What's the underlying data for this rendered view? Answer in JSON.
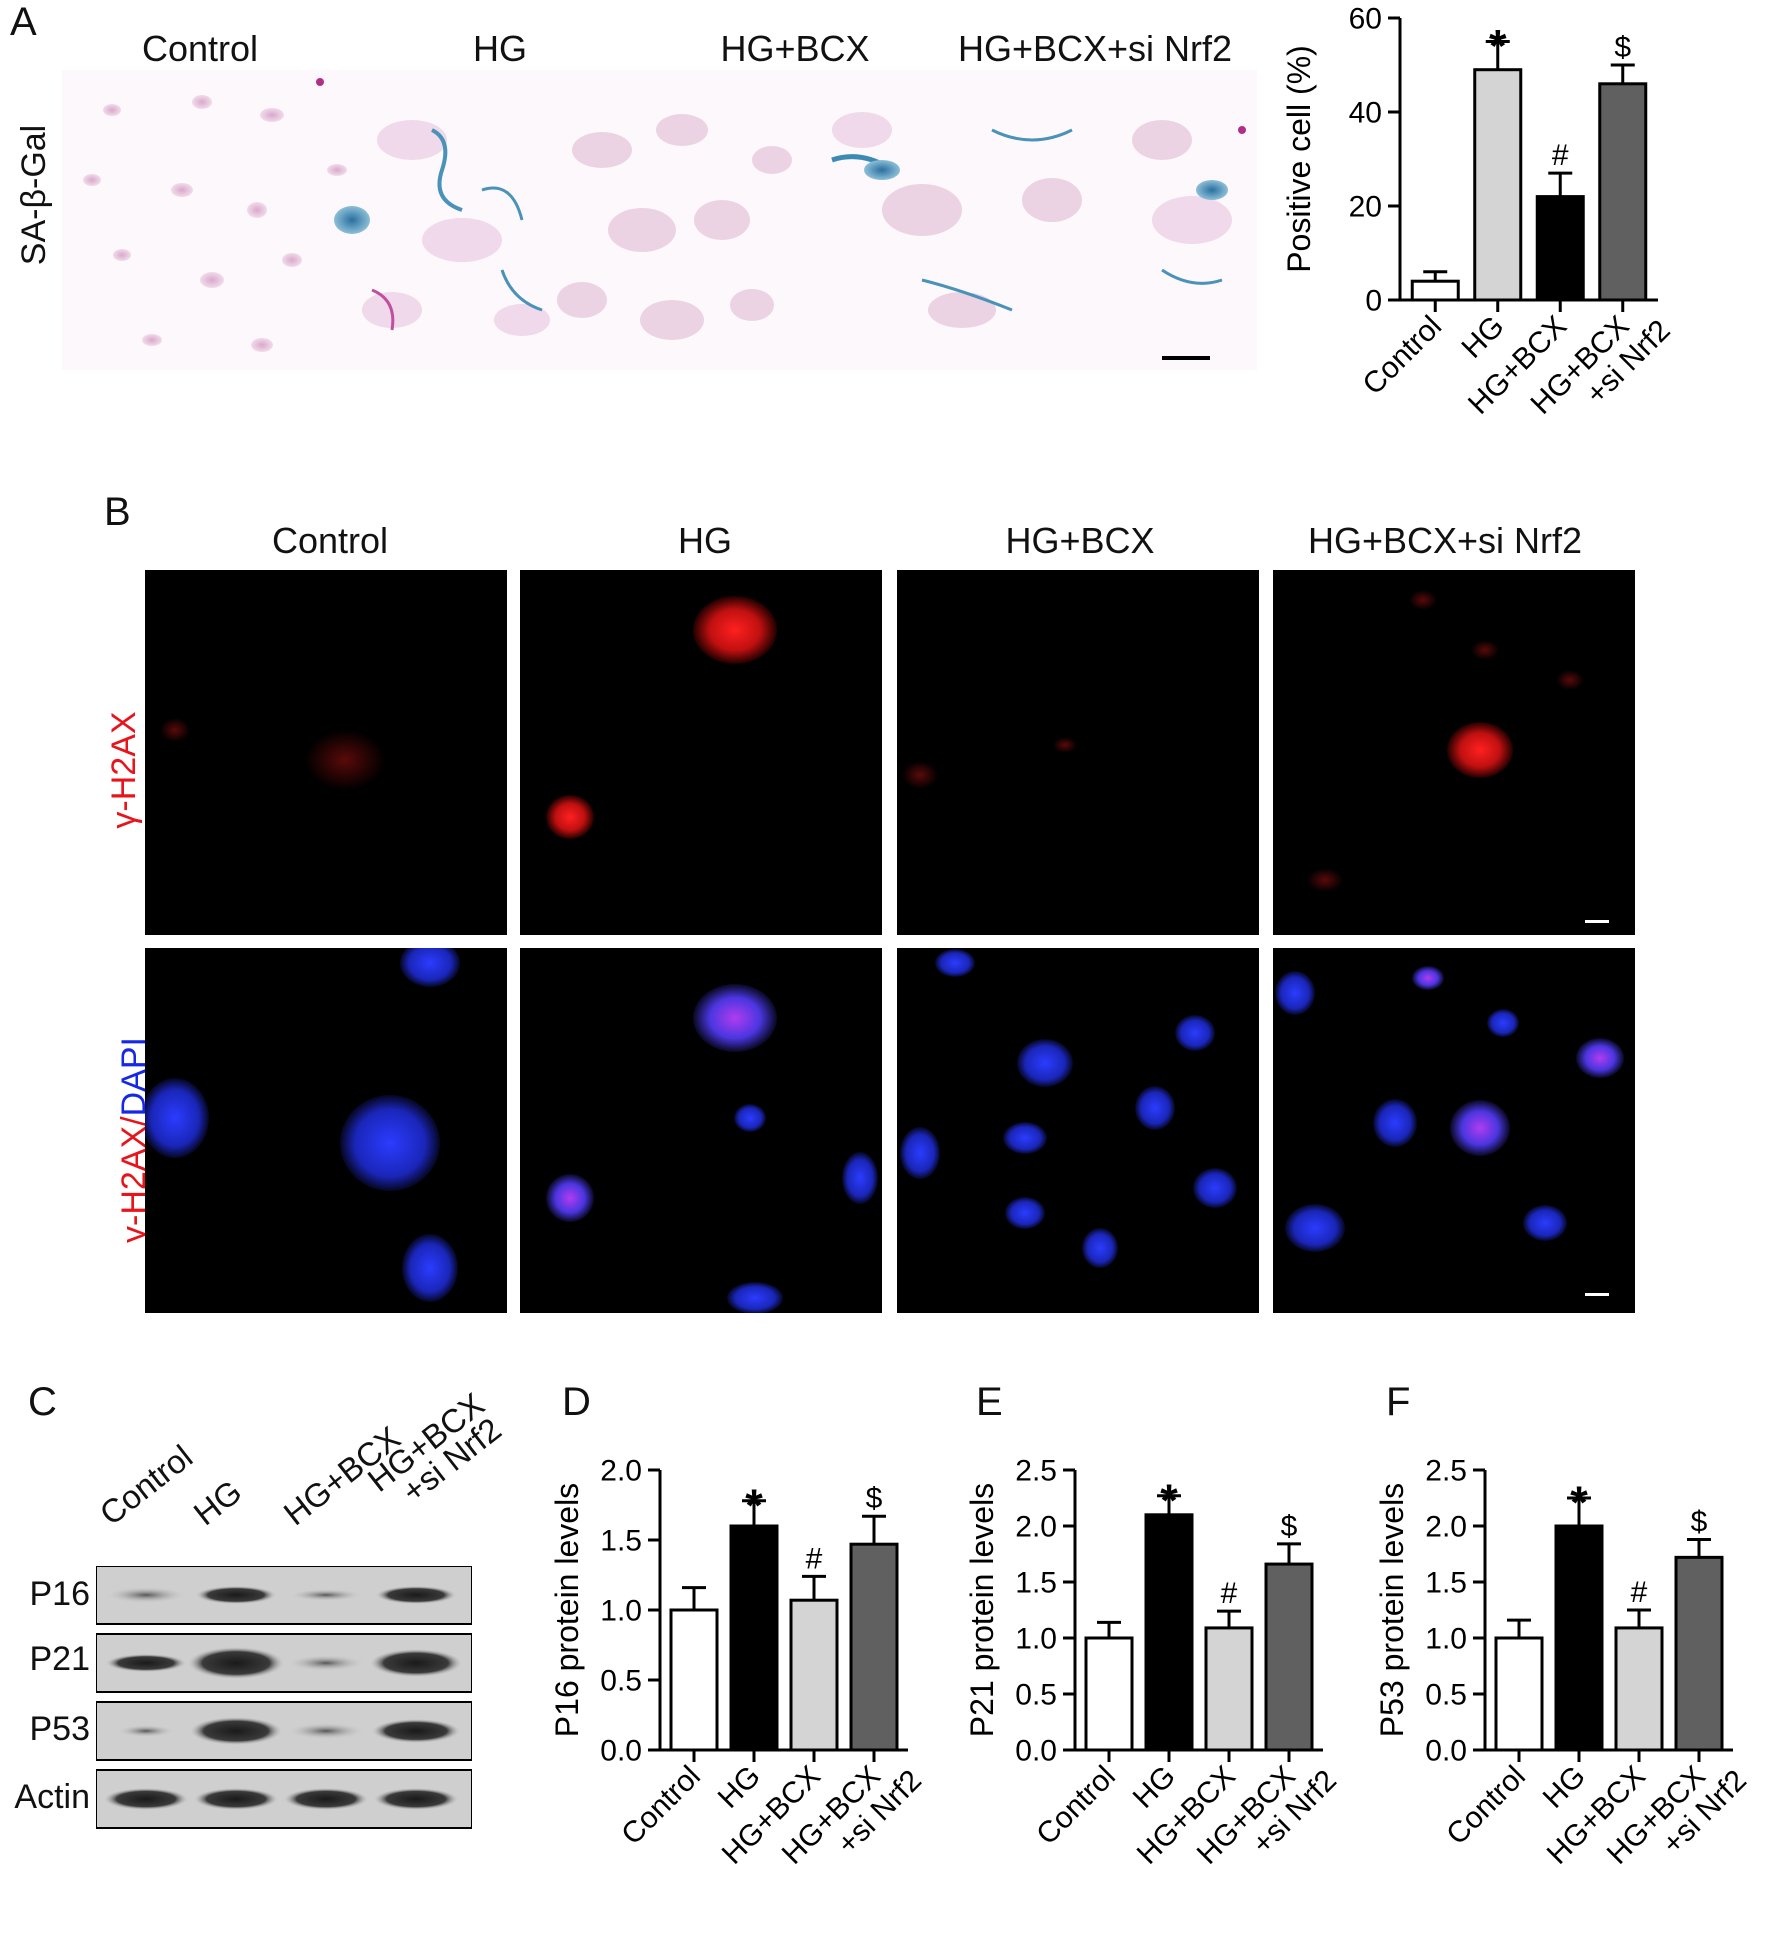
{
  "panels": {
    "A": {
      "letter": "A",
      "row_label": "SA-β-Gal",
      "columns": [
        "Control",
        "HG",
        "HG+BCX",
        "HG+BCX+si Nrf2"
      ]
    },
    "B": {
      "letter": "B",
      "columns": [
        "Control",
        "HG",
        "HG+BCX",
        "HG+BCX+si Nrf2"
      ],
      "row1_label": "γ-H2AX",
      "row2_label_part1": "γ-H2AX",
      "row2_label_sep": "/",
      "row2_label_part2": "DAPI"
    },
    "C": {
      "letter": "C",
      "lanes": [
        "Control",
        "HG",
        "HG+BCX",
        "HG+BCX\n+si Nrf2"
      ],
      "rows": [
        "P16",
        "P21",
        "P53",
        "Actin"
      ]
    }
  },
  "colors": {
    "red_label": "#e8141c",
    "blue_label": "#1528e6",
    "open_bar": "#ffffff",
    "light_gray": "#d4d4d4",
    "black": "#000000",
    "dark_gray": "#606060"
  },
  "chart_data": [
    {
      "id": "A",
      "type": "bar",
      "ylabel": "Positive cell (%)",
      "ylim": [
        0,
        60
      ],
      "yticks": [
        0,
        20,
        40,
        60
      ],
      "categories": [
        "Control",
        "HG",
        "HG+BCX",
        "HG+BCX\n+si Nrf2"
      ],
      "values": [
        4,
        49,
        22,
        46
      ],
      "errors": [
        2,
        6,
        5,
        4
      ],
      "fills": [
        "#ffffff",
        "#d4d4d4",
        "#000000",
        "#606060"
      ],
      "annotations": [
        "",
        "*",
        "#",
        "$"
      ]
    },
    {
      "id": "D",
      "letter": "D",
      "type": "bar",
      "ylabel": "P16 protein levels",
      "ylim": [
        0,
        2.0
      ],
      "yticks": [
        "0.0",
        "0.5",
        "1.0",
        "1.5",
        "2.0"
      ],
      "categories": [
        "Control",
        "HG",
        "HG+BCX",
        "HG+BCX\n+si Nrf2"
      ],
      "values": [
        1.0,
        1.6,
        1.07,
        1.47
      ],
      "errors": [
        0.16,
        0.18,
        0.17,
        0.2
      ],
      "fills": [
        "#ffffff",
        "#000000",
        "#d4d4d4",
        "#606060"
      ],
      "annotations": [
        "",
        "*",
        "#",
        "$"
      ]
    },
    {
      "id": "E",
      "letter": "E",
      "type": "bar",
      "ylabel": "P21 protein levels",
      "ylim": [
        0,
        2.5
      ],
      "yticks": [
        "0.0",
        "0.5",
        "1.0",
        "1.5",
        "2.0",
        "2.5"
      ],
      "categories": [
        "Control",
        "HG",
        "HG+BCX",
        "HG+BCX\n+si Nrf2"
      ],
      "values": [
        1.0,
        2.1,
        1.09,
        1.66
      ],
      "errors": [
        0.14,
        0.17,
        0.15,
        0.18
      ],
      "fills": [
        "#ffffff",
        "#000000",
        "#d4d4d4",
        "#606060"
      ],
      "annotations": [
        "",
        "*",
        "#",
        "$"
      ]
    },
    {
      "id": "F",
      "letter": "F",
      "type": "bar",
      "ylabel": "P53 protein levels",
      "ylim": [
        0,
        2.5
      ],
      "yticks": [
        "0.0",
        "0.5",
        "1.0",
        "1.5",
        "2.0",
        "2.5"
      ],
      "categories": [
        "Control",
        "HG",
        "HG+BCX",
        "HG+BCX\n+si Nrf2"
      ],
      "values": [
        1.0,
        2.0,
        1.09,
        1.72
      ],
      "errors": [
        0.16,
        0.25,
        0.16,
        0.16
      ],
      "fills": [
        "#ffffff",
        "#000000",
        "#d4d4d4",
        "#606060"
      ],
      "annotations": [
        "",
        "*",
        "#",
        "$"
      ]
    }
  ]
}
